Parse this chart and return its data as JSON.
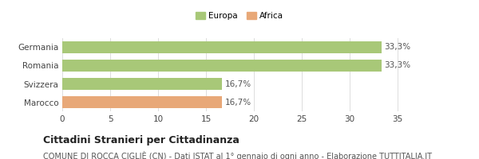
{
  "categories": [
    "Marocco",
    "Svizzera",
    "Romania",
    "Germania"
  ],
  "values": [
    16.7,
    16.7,
    33.3,
    33.3
  ],
  "bar_colors": [
    "#e8a878",
    "#a8c878",
    "#a8c878",
    "#a8c878"
  ],
  "bar_labels": [
    "16,7%",
    "16,7%",
    "33,3%",
    "33,3%"
  ],
  "legend_labels": [
    "Europa",
    "Africa"
  ],
  "legend_colors": [
    "#a8c878",
    "#e8a878"
  ],
  "xlim": [
    0,
    37
  ],
  "xticks": [
    0,
    5,
    10,
    15,
    20,
    25,
    30,
    35
  ],
  "title": "Cittadini Stranieri per Cittadinanza",
  "subtitle": "COMUNE DI ROCCA CIGLIÈ (CN) - Dati ISTAT al 1° gennaio di ogni anno - Elaborazione TUTTITALIA.IT",
  "title_fontsize": 9,
  "subtitle_fontsize": 7,
  "label_fontsize": 7.5,
  "tick_fontsize": 7.5,
  "background_color": "#ffffff",
  "bar_edge_color": "none"
}
